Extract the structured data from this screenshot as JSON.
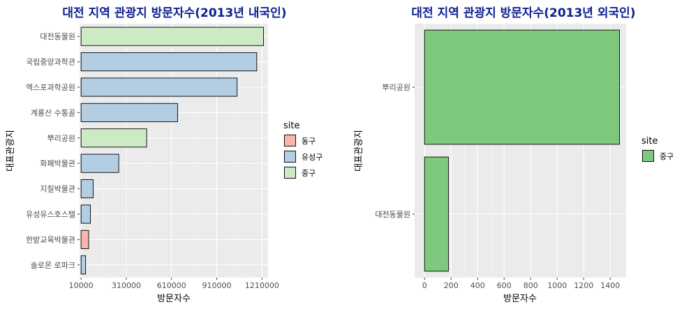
{
  "chart_data": [
    {
      "type": "bar",
      "orientation": "horizontal",
      "title": "대전 지역 관광지 방문자수(2013년 내국인)",
      "xlabel": "방문자수",
      "ylabel": "대표관광지",
      "xlim": [
        0,
        1250000
      ],
      "xticks": [
        10000,
        310000,
        610000,
        910000,
        1210000
      ],
      "xtick_labels": [
        "10000",
        "310000",
        "610000",
        "910000",
        "1210000"
      ],
      "bar_origin": 10000,
      "grid": true,
      "legend": {
        "title": "site",
        "position": "right",
        "entries": [
          "동구",
          "유성구",
          "중구"
        ]
      },
      "categories": [
        "대전동물원",
        "국립중앙과학관",
        "엑스포과학공원",
        "계룡산 수통골",
        "뿌리공원",
        "화폐박물관",
        "지질박물관",
        "유성유스호스텔",
        "한밭교육박물관",
        "솔로몬 로파크"
      ],
      "values": [
        1220000,
        1175000,
        1045000,
        650000,
        445000,
        260000,
        90000,
        72000,
        60000,
        40000
      ],
      "groups": [
        "중구",
        "유성구",
        "유성구",
        "유성구",
        "중구",
        "유성구",
        "유성구",
        "유성구",
        "동구",
        "유성구"
      ],
      "colors": {
        "동구": "#fbb4ae",
        "유성구": "#b3cde3",
        "중구": "#ccebc5"
      }
    },
    {
      "type": "bar",
      "orientation": "horizontal",
      "title": "대전 지역 관광지 방문자수(2013년 외국인)",
      "xlabel": "방문자수",
      "ylabel": "대표관광지",
      "xlim": [
        -75,
        1520
      ],
      "xticks": [
        0,
        200,
        400,
        600,
        800,
        1000,
        1200,
        1400
      ],
      "xtick_labels": [
        "0",
        "200",
        "400",
        "600",
        "800",
        "1000",
        "1200",
        "1400"
      ],
      "bar_origin": 0,
      "grid": true,
      "legend": {
        "title": "site",
        "position": "right",
        "entries": [
          "중구"
        ]
      },
      "categories": [
        "뿌리공원",
        "대전동물원"
      ],
      "values": [
        1470,
        180
      ],
      "groups": [
        "중구",
        "중구"
      ],
      "colors": {
        "중구": "#7fc97f"
      }
    }
  ]
}
